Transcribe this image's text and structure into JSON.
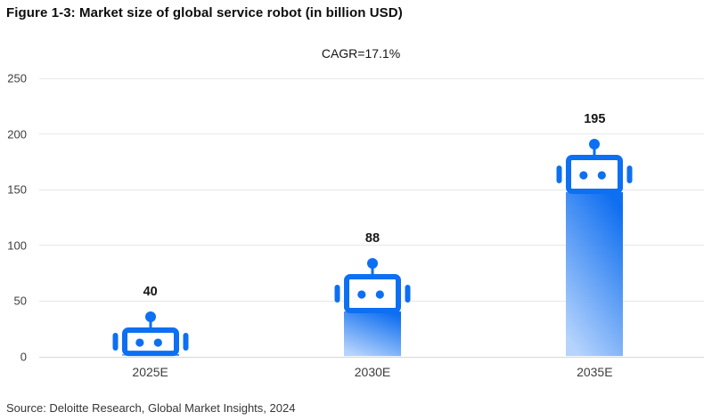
{
  "figure": {
    "title": "Figure 1-3: Market size of global service robot (in billion USD)",
    "source": "Source: Deloitte Research, Global Market Insights, 2024"
  },
  "chart_data": {
    "type": "bar",
    "title": "Market size of global service robot (in billion USD)",
    "annotation": "CAGR=17.1%",
    "categories": [
      "2025E",
      "2030E",
      "2035E"
    ],
    "values": [
      40,
      88,
      195
    ],
    "value_labels": [
      "40",
      "88",
      "195"
    ],
    "xlabel": "",
    "ylabel": "",
    "ylim": [
      0,
      250
    ],
    "yticks": [
      0,
      50,
      100,
      150,
      200,
      250
    ],
    "grid": true,
    "legend": false,
    "bar_icon": "robot-head",
    "colors": {
      "robot_blue": "#0d6ff2",
      "bar_gradient_top": "#0f6ff0",
      "bar_gradient_bottom": "#b5d3fc",
      "grid": "#e7e7e7",
      "zero_line": "#d8d8d8",
      "tick_text": "#3d3d3d",
      "value_text": "#161616",
      "title_text": "#0d0d0d"
    }
  }
}
